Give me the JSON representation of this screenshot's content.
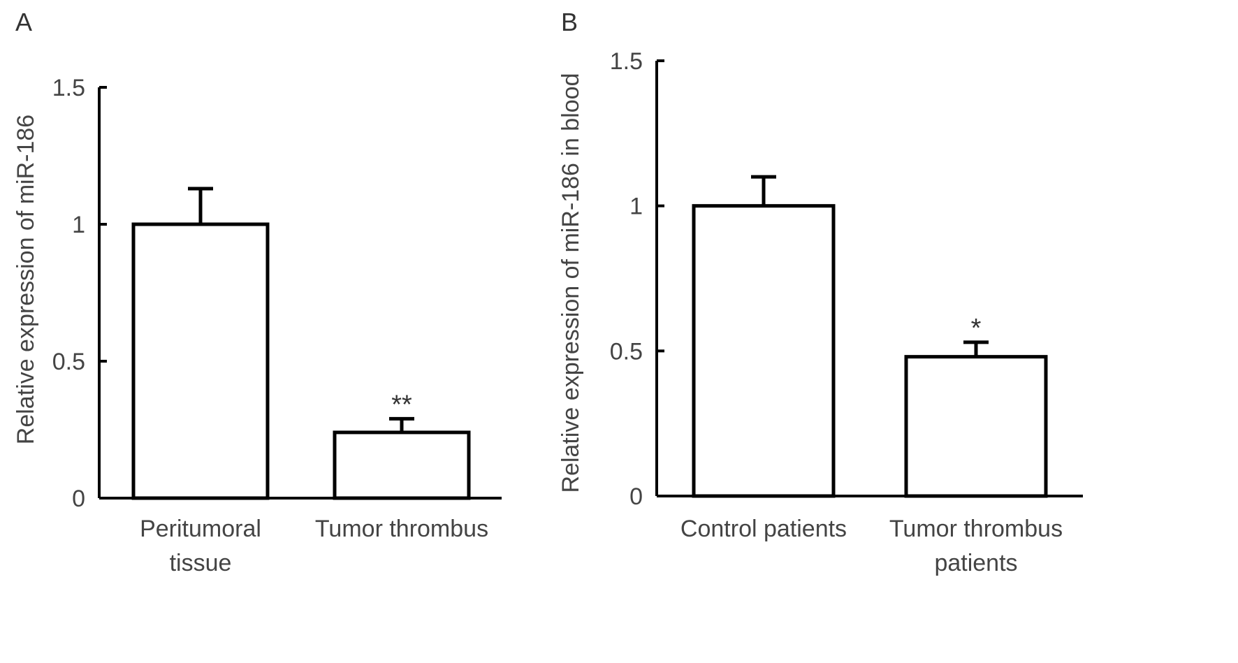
{
  "chart_data": [
    {
      "panel": "A",
      "type": "bar",
      "ylabel": "Relative expression of miR-186",
      "xlabel": "",
      "ylim": [
        0,
        1.5
      ],
      "yticks": [
        0,
        0.5,
        1,
        1.5
      ],
      "ytick_labels": [
        "0",
        "0.5",
        "1",
        "1.5"
      ],
      "categories": [
        [
          "Peritumoral",
          "tissue"
        ],
        [
          "Tumor thrombus"
        ]
      ],
      "values": [
        1.0,
        0.24
      ],
      "errors": [
        0.13,
        0.05
      ],
      "annotations": [
        "",
        "**"
      ],
      "grid": false
    },
    {
      "panel": "B",
      "type": "bar",
      "ylabel": "Relative expression of miR-186 in blood",
      "xlabel": "",
      "ylim": [
        0,
        1.5
      ],
      "yticks": [
        0,
        0.5,
        1,
        1.5
      ],
      "ytick_labels": [
        "0",
        "0.5",
        "1",
        "1.5"
      ],
      "categories": [
        [
          "Control patients"
        ],
        [
          "Tumor thrombus",
          "patients"
        ]
      ],
      "values": [
        1.0,
        0.48
      ],
      "errors": [
        0.1,
        0.05
      ],
      "annotations": [
        "",
        "*"
      ],
      "grid": false
    }
  ]
}
